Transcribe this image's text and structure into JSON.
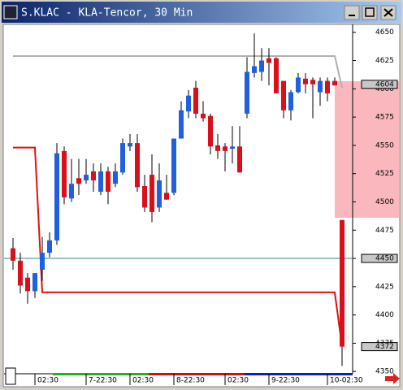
{
  "chart_data": {
    "type": "candlestick",
    "title": "S.KLAC - KLA-Tencor, 30 Min",
    "categories": [
      null,
      null,
      null,
      "02:30",
      null,
      null,
      null,
      null,
      null,
      null,
      "7-22:30",
      null,
      null,
      null,
      null,
      null,
      "02:30",
      null,
      null,
      null,
      null,
      null,
      "8-22:30",
      null,
      null,
      null,
      null,
      null,
      null,
      "02:30",
      null,
      null,
      null,
      null,
      null,
      "9-22:30",
      null,
      null,
      null,
      null,
      null,
      null,
      null,
      "10-02:30",
      null,
      null
    ],
    "open": [
      4459,
      4448,
      4433,
      4421,
      4440,
      4455,
      4466,
      4545,
      4503,
      4521,
      4519,
      4527,
      4509,
      4527,
      4516,
      4526,
      4549,
      4552,
      4514,
      4524,
      4495,
      4508,
      4508,
      4556,
      4580,
      4601,
      4578,
      4576,
      4550,
      4549,
      4547,
      4549,
      4578,
      4614,
      4615,
      4627,
      4627,
      4607,
      4581,
      4597,
      4609,
      4608,
      4597,
      4607,
      4607,
      4484
    ],
    "high": [
      4468,
      4455,
      4437,
      4437,
      4469,
      4473,
      4552,
      4549,
      4538,
      4538,
      4538,
      4534,
      4534,
      4531,
      4534,
      4556,
      4560,
      4560,
      4524,
      4542,
      4534,
      4524,
      4556,
      4589,
      4599,
      4607,
      4589,
      4578,
      4560,
      4552,
      4567,
      4567,
      4628,
      4649,
      4636,
      4636,
      4628,
      4607,
      4599,
      4614,
      4614,
      4610,
      4610,
      4610,
      4610,
      4484
    ],
    "low": [
      4440,
      4419,
      4410,
      4415,
      4430,
      4451,
      4462,
      4498,
      4500,
      4506,
      4516,
      4509,
      4506,
      4498,
      4513,
      4524,
      4545,
      4509,
      4491,
      4482,
      4491,
      4502,
      4506,
      4556,
      4574,
      4574,
      4571,
      4542,
      4538,
      4527,
      4534,
      4526,
      4574,
      4610,
      4607,
      4603,
      4596,
      4574,
      4572,
      4596,
      4596,
      4574,
      4585,
      4589,
      4603,
      4355
    ],
    "close": [
      4448,
      4426,
      4421,
      4437,
      4455,
      4466,
      4543,
      4504,
      4516,
      4516,
      4524,
      4519,
      4527,
      4509,
      4527,
      4552,
      4552,
      4513,
      4495,
      4491,
      4519,
      4502,
      4556,
      4581,
      4594,
      4578,
      4574,
      4549,
      4545,
      4545,
      4549,
      4526,
      4615,
      4620,
      4625,
      4623,
      4596,
      4581,
      4597,
      4610,
      4604,
      4604,
      4607,
      4596,
      4603,
      4372
    ],
    "up_color": "#1f5fe0",
    "down_color": "#d8101c",
    "lines": [
      {
        "color": "#e01010",
        "values": [
          4548,
          4548,
          4548,
          4548,
          4420,
          4420,
          4420,
          4420,
          4420,
          4420,
          4420,
          4420,
          4420,
          4420,
          4420,
          4420,
          4420,
          4420,
          4420,
          4420,
          4420,
          4420,
          4420,
          4420,
          4420,
          4420,
          4420,
          4420,
          4420,
          4420,
          4420,
          4420,
          4420,
          4420,
          4420,
          4420,
          4420,
          4420,
          4420,
          4420,
          4420,
          4420,
          4420,
          4420,
          4420,
          4372
        ]
      },
      {
        "color": "#b0b0b0",
        "values": [
          4629,
          4629,
          4629,
          4629,
          4629,
          4629,
          4629,
          4629,
          4629,
          4629,
          4629,
          4629,
          4629,
          4629,
          4629,
          4629,
          4629,
          4629,
          4629,
          4629,
          4629,
          4629,
          4629,
          4629,
          4629,
          4629,
          4629,
          4629,
          4629,
          4629,
          4629,
          4629,
          4629,
          4629,
          4629,
          4629,
          4629,
          4629,
          4629,
          4629,
          4629,
          4629,
          4629,
          4629,
          4629,
          4601
        ]
      }
    ],
    "reference_line": {
      "value": 4450,
      "color": "#2a8a8a"
    },
    "price_markers": [
      4604,
      4450,
      4372
    ],
    "ylim": [
      4348,
      4657
    ],
    "yticks": [
      4350,
      4375,
      4400,
      4425,
      4450,
      4475,
      4500,
      4525,
      4550,
      4575,
      4600,
      4625,
      4650
    ]
  }
}
